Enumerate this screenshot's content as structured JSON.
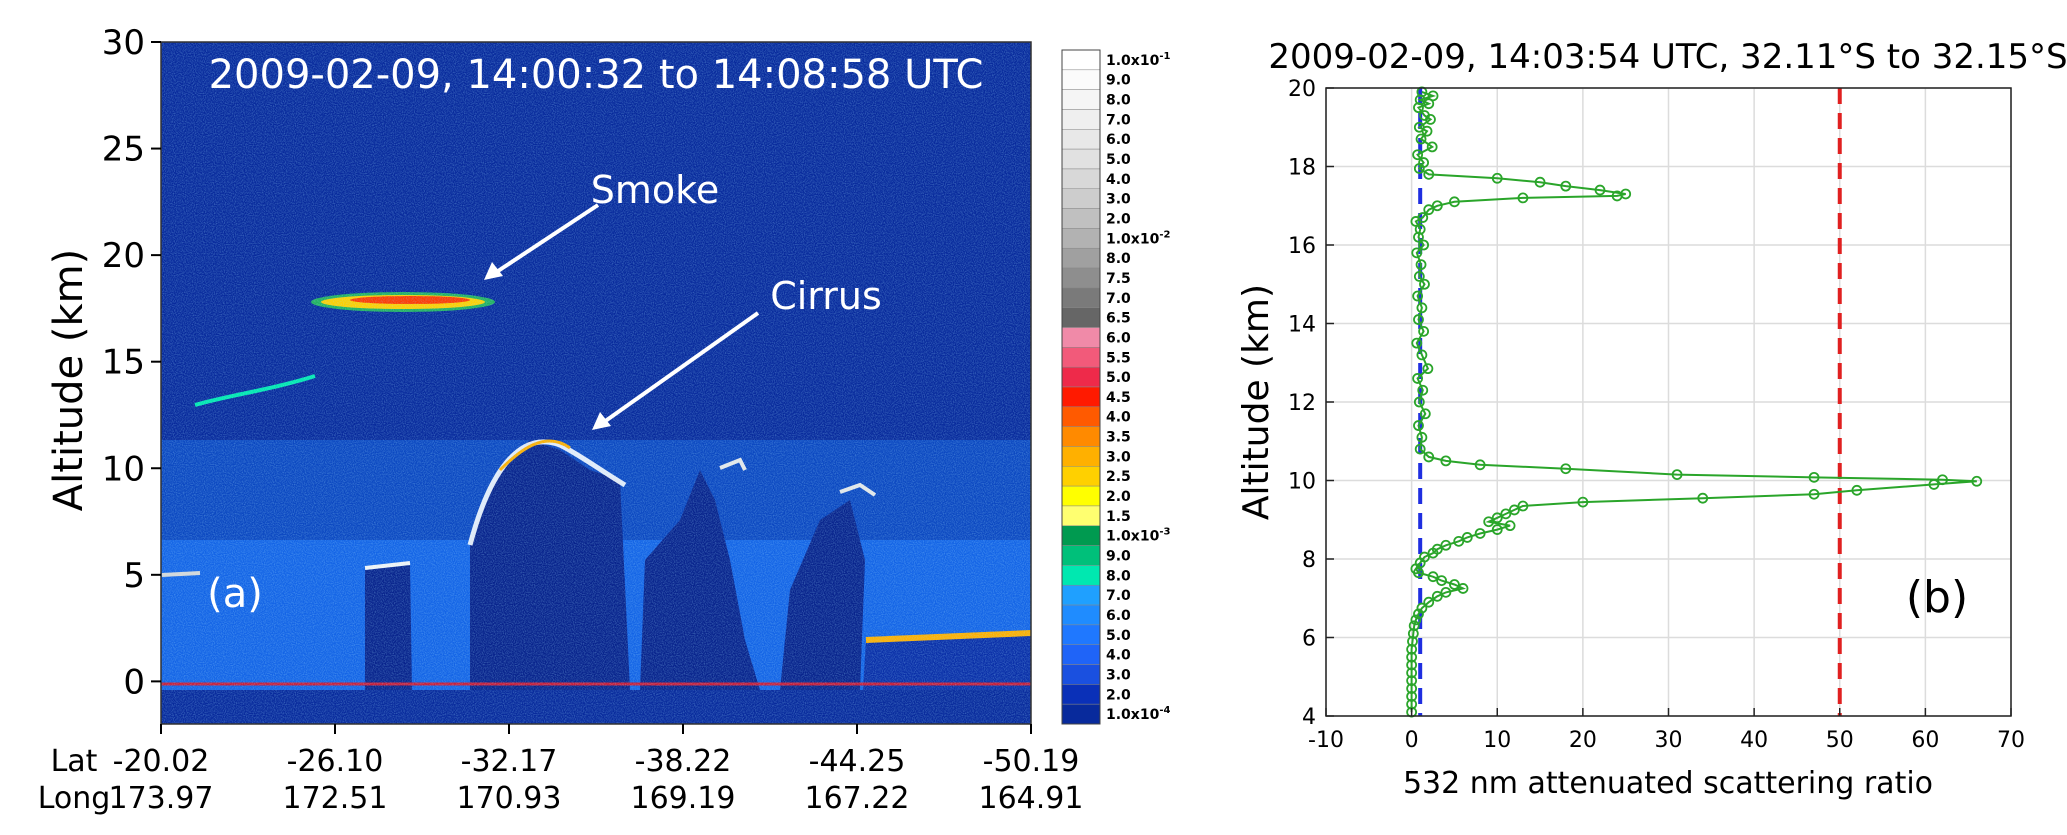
{
  "chart_data": [
    {
      "type": "heatmap",
      "title": "2009-02-09, 14:00:32 to 14:08:58 UTC",
      "ylabel": "Altitude (km)",
      "ylim": [
        -2,
        30
      ],
      "yticks": [
        0,
        5,
        10,
        15,
        20,
        25,
        30
      ],
      "x_rows": [
        {
          "label": "Lat",
          "values": [
            "-20.02",
            "-26.10",
            "-32.17",
            "-38.22",
            "-44.25",
            "-50.19"
          ]
        },
        {
          "label": "Long",
          "values": [
            "173.97",
            "172.51",
            "170.93",
            "169.19",
            "167.22",
            "164.91"
          ]
        }
      ],
      "panel_label": "(a)",
      "annotations": [
        {
          "text": "Smoke",
          "lat": -28.9,
          "altitude": 18.2
        },
        {
          "text": "Cirrus",
          "lat": -34.3,
          "altitude": 12.0
        }
      ],
      "colorbar": {
        "labels": [
          "1.0x10-1",
          "9.0",
          "8.0",
          "7.0",
          "6.0",
          "5.0",
          "4.0",
          "3.0",
          "2.0",
          "1.0x10-2",
          "8.0",
          "7.5",
          "7.0",
          "6.5",
          "6.0",
          "5.5",
          "5.0",
          "4.5",
          "4.0",
          "3.5",
          "3.0",
          "2.5",
          "2.0",
          "1.5",
          "1.0x10-3",
          "9.0",
          "8.0",
          "7.0",
          "6.0",
          "5.0",
          "4.0",
          "3.0",
          "2.0",
          "1.0x10-4"
        ],
        "colors": [
          "#ffffff",
          "#fbfbfb",
          "#f5f5f5",
          "#efefef",
          "#e8e8e8",
          "#e1e1e1",
          "#d8d8d8",
          "#cdcdcd",
          "#c0c0c0",
          "#b2b2b2",
          "#a0a0a0",
          "#8e8e8e",
          "#7a7a7a",
          "#666666",
          "#f08aa8",
          "#f25a7a",
          "#ee2a4a",
          "#ff1a00",
          "#ff5a00",
          "#ff8a00",
          "#ffb000",
          "#ffd000",
          "#ffff00",
          "#ffff70",
          "#009a50",
          "#00c07a",
          "#00e8b0",
          "#1fa0ff",
          "#1f8cff",
          "#1f78ff",
          "#1f64f8",
          "#1a50e0",
          "#0a30b8",
          "#082a9c"
        ]
      },
      "features": [
        {
          "name": "smoke",
          "lat_range": [
            -25.8,
            -31.1
          ],
          "altitude_range": [
            17.3,
            18.4
          ]
        },
        {
          "name": "thin-layer",
          "lat_range": [
            -22.2,
            -25.6
          ],
          "altitude_range": [
            12.8,
            14.2
          ]
        },
        {
          "name": "cirrus",
          "lat_range": [
            -32.3,
            -36.4
          ],
          "altitude_range": [
            6.2,
            12.0
          ]
        }
      ]
    },
    {
      "type": "line",
      "title": "2009-02-09, 14:03:54 UTC, 32.11°S to 32.15°S",
      "xlabel": "532 nm attenuated scattering ratio",
      "ylabel": "Altitude (km)",
      "xlim": [
        -10,
        70
      ],
      "ylim": [
        4,
        20
      ],
      "xticks": [
        -10,
        0,
        10,
        20,
        30,
        40,
        50,
        60,
        70
      ],
      "yticks": [
        4,
        6,
        8,
        10,
        12,
        14,
        16,
        18,
        20
      ],
      "grid": true,
      "panel_label": "(b)",
      "reference_lines": [
        {
          "axis": "x",
          "value": 1,
          "color": "#1f2ee0",
          "style": "dashed"
        },
        {
          "axis": "x",
          "value": 50,
          "color": "#e02020",
          "style": "dashed"
        }
      ],
      "series": [
        {
          "color": "#2aa52a",
          "marker": "circle",
          "points": [
            [
              1.2,
              19.9
            ],
            [
              2.5,
              19.8
            ],
            [
              1.0,
              19.7
            ],
            [
              2.0,
              19.6
            ],
            [
              0.8,
              19.5
            ],
            [
              1.5,
              19.3
            ],
            [
              2.2,
              19.2
            ],
            [
              0.9,
              19.0
            ],
            [
              1.8,
              18.9
            ],
            [
              1.1,
              18.7
            ],
            [
              2.4,
              18.5
            ],
            [
              0.7,
              18.3
            ],
            [
              1.4,
              18.1
            ],
            [
              0.9,
              17.95
            ],
            [
              2.0,
              17.8
            ],
            [
              10.0,
              17.7
            ],
            [
              15.0,
              17.6
            ],
            [
              18.0,
              17.5
            ],
            [
              22.0,
              17.4
            ],
            [
              25.0,
              17.3
            ],
            [
              24.0,
              17.25
            ],
            [
              13.0,
              17.2
            ],
            [
              5.0,
              17.1
            ],
            [
              3.0,
              17.0
            ],
            [
              2.0,
              16.9
            ],
            [
              1.3,
              16.7
            ],
            [
              0.5,
              16.6
            ],
            [
              1.0,
              16.4
            ],
            [
              0.8,
              16.2
            ],
            [
              1.4,
              16.0
            ],
            [
              0.6,
              15.8
            ],
            [
              1.1,
              15.5
            ],
            [
              0.9,
              15.2
            ],
            [
              1.5,
              15.0
            ],
            [
              0.7,
              14.7
            ],
            [
              1.2,
              14.4
            ],
            [
              0.8,
              14.1
            ],
            [
              1.4,
              13.8
            ],
            [
              0.6,
              13.5
            ],
            [
              1.2,
              13.2
            ],
            [
              1.9,
              12.85
            ],
            [
              0.7,
              12.6
            ],
            [
              1.3,
              12.3
            ],
            [
              0.9,
              12.0
            ],
            [
              1.6,
              11.7
            ],
            [
              0.8,
              11.4
            ],
            [
              1.2,
              11.1
            ],
            [
              1.0,
              10.8
            ],
            [
              2.0,
              10.6
            ],
            [
              4.0,
              10.5
            ],
            [
              8.0,
              10.4
            ],
            [
              18.0,
              10.3
            ],
            [
              31.0,
              10.15
            ],
            [
              47.0,
              10.08
            ],
            [
              62.0,
              10.02
            ],
            [
              66.0,
              9.98
            ],
            [
              61.0,
              9.9
            ],
            [
              52.0,
              9.75
            ],
            [
              47.0,
              9.65
            ],
            [
              34.0,
              9.55
            ],
            [
              20.0,
              9.45
            ],
            [
              13.0,
              9.35
            ],
            [
              12.0,
              9.25
            ],
            [
              11.0,
              9.15
            ],
            [
              10.0,
              9.05
            ],
            [
              9.0,
              8.95
            ],
            [
              11.5,
              8.85
            ],
            [
              10.0,
              8.75
            ],
            [
              8.0,
              8.65
            ],
            [
              6.5,
              8.55
            ],
            [
              5.5,
              8.45
            ],
            [
              4.0,
              8.35
            ],
            [
              3.0,
              8.25
            ],
            [
              2.5,
              8.15
            ],
            [
              1.5,
              8.05
            ],
            [
              1.0,
              7.9
            ],
            [
              0.5,
              7.75
            ],
            [
              0.8,
              7.65
            ],
            [
              2.5,
              7.55
            ],
            [
              3.5,
              7.45
            ],
            [
              5.0,
              7.35
            ],
            [
              6.0,
              7.25
            ],
            [
              4.0,
              7.15
            ],
            [
              3.0,
              7.05
            ],
            [
              2.0,
              6.9
            ],
            [
              1.2,
              6.75
            ],
            [
              0.8,
              6.6
            ],
            [
              0.5,
              6.45
            ],
            [
              0.3,
              6.3
            ],
            [
              0.2,
              6.1
            ],
            [
              0.1,
              5.9
            ],
            [
              0.0,
              5.7
            ],
            [
              0.0,
              5.5
            ],
            [
              0.0,
              5.3
            ],
            [
              0.0,
              5.1
            ],
            [
              0.0,
              4.9
            ],
            [
              0.0,
              4.7
            ],
            [
              0.0,
              4.5
            ],
            [
              0.0,
              4.3
            ],
            [
              0.0,
              4.1
            ]
          ]
        }
      ]
    }
  ]
}
